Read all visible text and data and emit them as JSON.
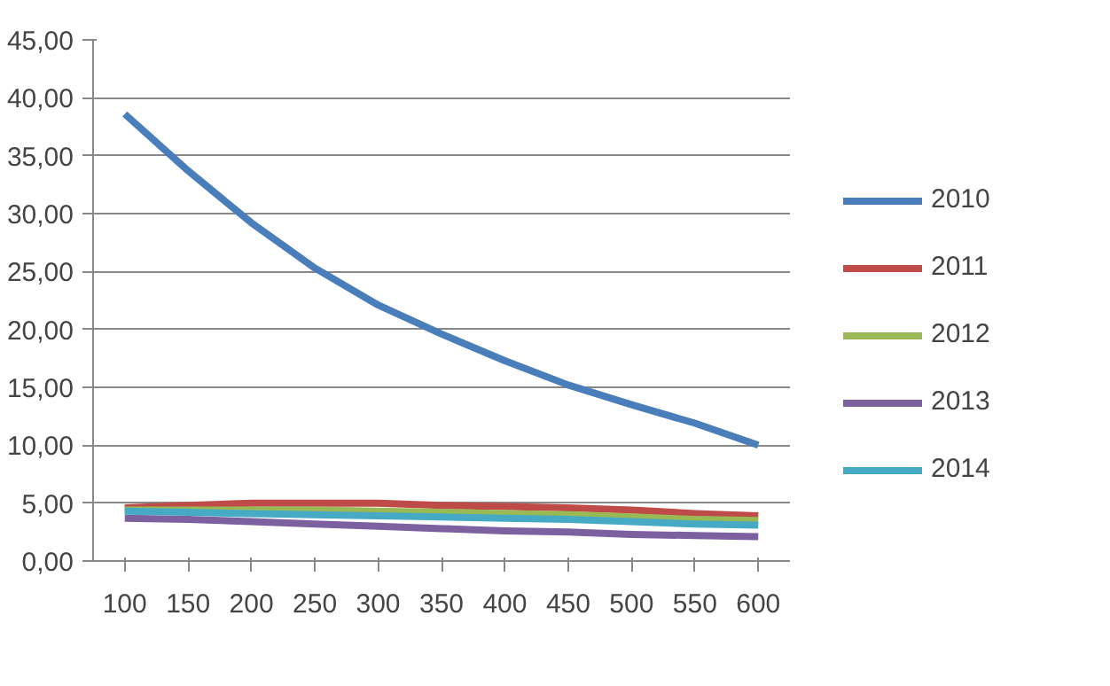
{
  "chart_data": {
    "type": "line",
    "categories": [
      "100",
      "150",
      "200",
      "250",
      "300",
      "350",
      "400",
      "450",
      "500",
      "550",
      "600"
    ],
    "series": [
      {
        "name": "2010",
        "color": "#4a7ebb",
        "values": [
          38.6,
          33.7,
          29.2,
          25.3,
          22.1,
          19.6,
          17.3,
          15.2,
          13.5,
          11.9,
          10.0
        ]
      },
      {
        "name": "2011",
        "color": "#be4b48",
        "values": [
          4.6,
          4.8,
          5.0,
          5.0,
          5.0,
          4.8,
          4.7,
          4.6,
          4.4,
          4.1,
          3.9
        ]
      },
      {
        "name": "2012",
        "color": "#98b954",
        "values": [
          4.4,
          4.4,
          4.4,
          4.4,
          4.3,
          4.2,
          4.1,
          4.0,
          3.8,
          3.6,
          3.5
        ]
      },
      {
        "name": "2013",
        "color": "#7d60a0",
        "values": [
          3.7,
          3.6,
          3.4,
          3.2,
          3.0,
          2.8,
          2.6,
          2.5,
          2.3,
          2.2,
          2.1
        ]
      },
      {
        "name": "2014",
        "color": "#46aac5",
        "values": [
          4.3,
          4.2,
          4.1,
          4.0,
          3.9,
          3.8,
          3.7,
          3.6,
          3.4,
          3.2,
          3.1
        ]
      }
    ],
    "ylim": [
      0,
      45
    ],
    "yticks": [
      {
        "value": 0,
        "label": "0,00"
      },
      {
        "value": 5,
        "label": "5,00"
      },
      {
        "value": 10,
        "label": "10,00"
      },
      {
        "value": 15,
        "label": "15,00"
      },
      {
        "value": 20,
        "label": "20,00"
      },
      {
        "value": 25,
        "label": "25,00"
      },
      {
        "value": 30,
        "label": "30,00"
      },
      {
        "value": 35,
        "label": "35,00"
      },
      {
        "value": 40,
        "label": "40,00"
      },
      {
        "value": 45,
        "label": "45,00"
      }
    ],
    "grid": "y",
    "legend": "right",
    "marker": "none",
    "line_style": "solid"
  }
}
